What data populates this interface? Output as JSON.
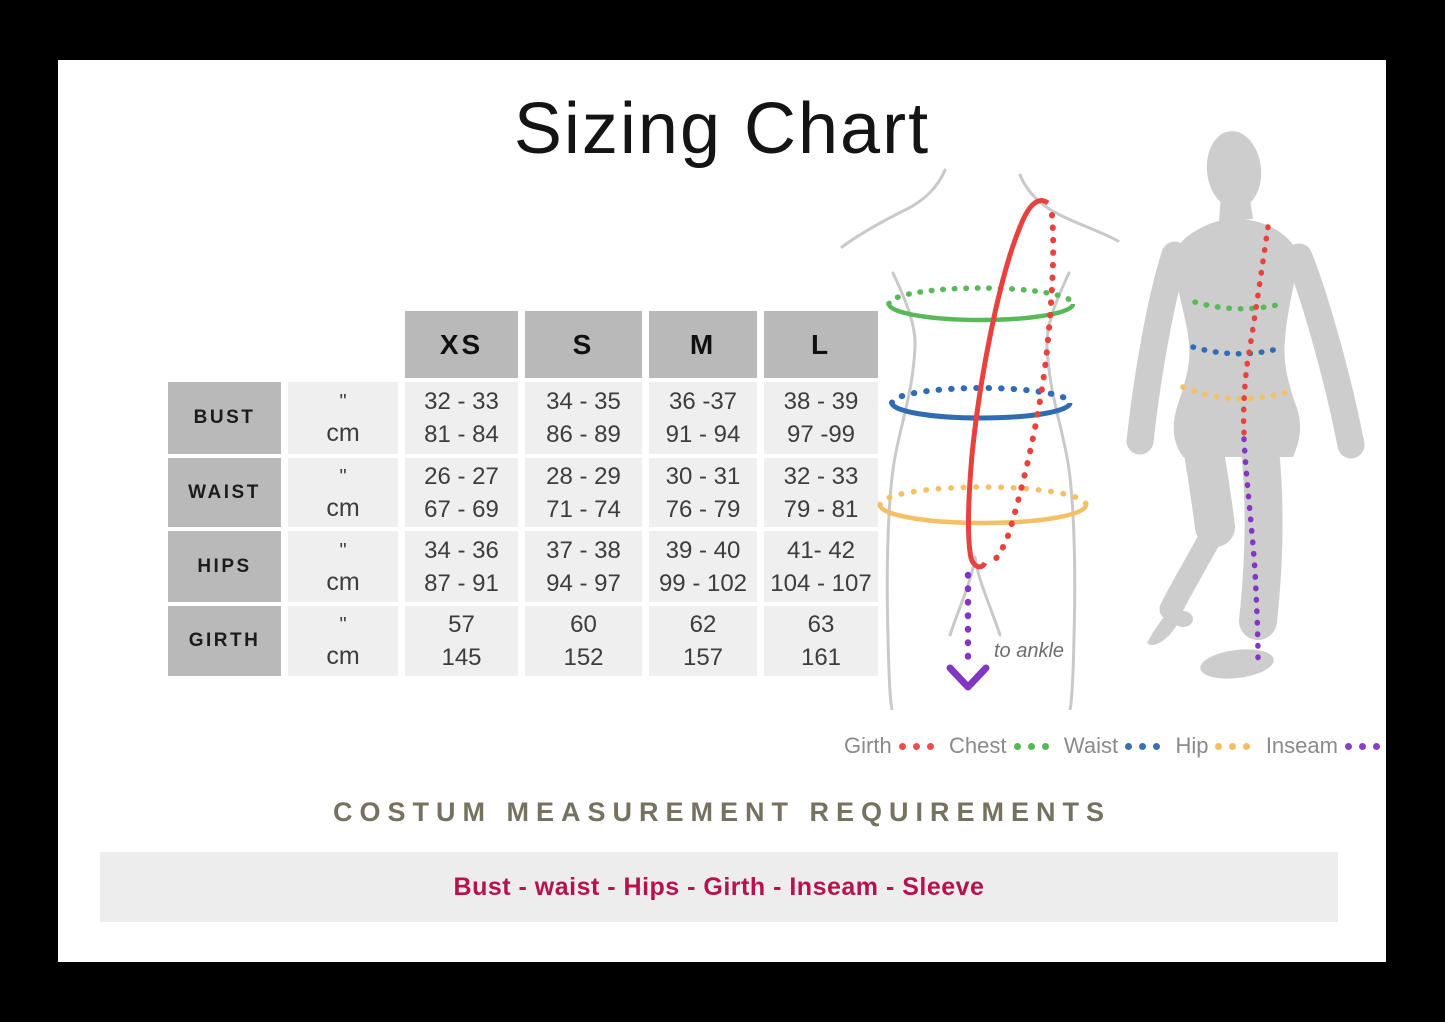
{
  "page": {
    "title": "Sizing Chart"
  },
  "chart_data": {
    "type": "table",
    "title": "Sizing Chart",
    "sizes": [
      "XS",
      "S",
      "M",
      "L"
    ],
    "unit_labels": [
      "\"",
      "cm"
    ],
    "measurements": [
      {
        "name": "BUST",
        "inches": [
          "32 - 33",
          "34 - 35",
          "36 -37",
          "38 - 39"
        ],
        "cm": [
          "81 - 84",
          "86 - 89",
          "91 - 94",
          "97 -99"
        ]
      },
      {
        "name": "WAIST",
        "inches": [
          "26 - 27",
          "28 - 29",
          "30 - 31",
          "32 - 33"
        ],
        "cm": [
          "67 - 69",
          "71 - 74",
          "76 - 79",
          "79 - 81"
        ]
      },
      {
        "name": "HIPS",
        "inches": [
          "34 - 36",
          "37 - 38",
          "39 - 40",
          "41- 42"
        ],
        "cm": [
          "87 - 91",
          "94 - 97",
          "99 - 102",
          "104 - 107"
        ]
      },
      {
        "name": "GIRTH",
        "inches": [
          "57",
          "60",
          "62",
          "63"
        ],
        "cm": [
          "145",
          "152",
          "157",
          "161"
        ]
      }
    ]
  },
  "figure": {
    "annotation": "to ankle"
  },
  "legend": {
    "items": [
      {
        "label": "Girth",
        "color": "#e85050"
      },
      {
        "label": "Chest",
        "color": "#55b855"
      },
      {
        "label": "Waist",
        "color": "#3a6fb5"
      },
      {
        "label": "Hip",
        "color": "#f2c063"
      },
      {
        "label": "Inseam",
        "color": "#8a3fc6"
      }
    ]
  },
  "requirements": {
    "heading": "COSTUM MEASUREMENT REQUIREMENTS",
    "banner": "Bust - waist - Hips - Girth - Inseam - Sleeve"
  },
  "colors": {
    "frame": "#000000",
    "canvas": "#ffffff",
    "header_box": "#b9b9b9",
    "value_box": "#efefef",
    "heading_text": "#767260",
    "banner_bg": "#ededed",
    "banner_text": "#b5124f",
    "legend_text": "#8a8a8a",
    "girth_red": "#e8423e",
    "chest_green": "#57b957",
    "waist_blue": "#2f6cb3",
    "hip_yellow": "#f4c065",
    "inseam_purple": "#8236c2",
    "outline_gray": "#c9c9c9",
    "silhouette_gray": "#cdcdcd"
  }
}
